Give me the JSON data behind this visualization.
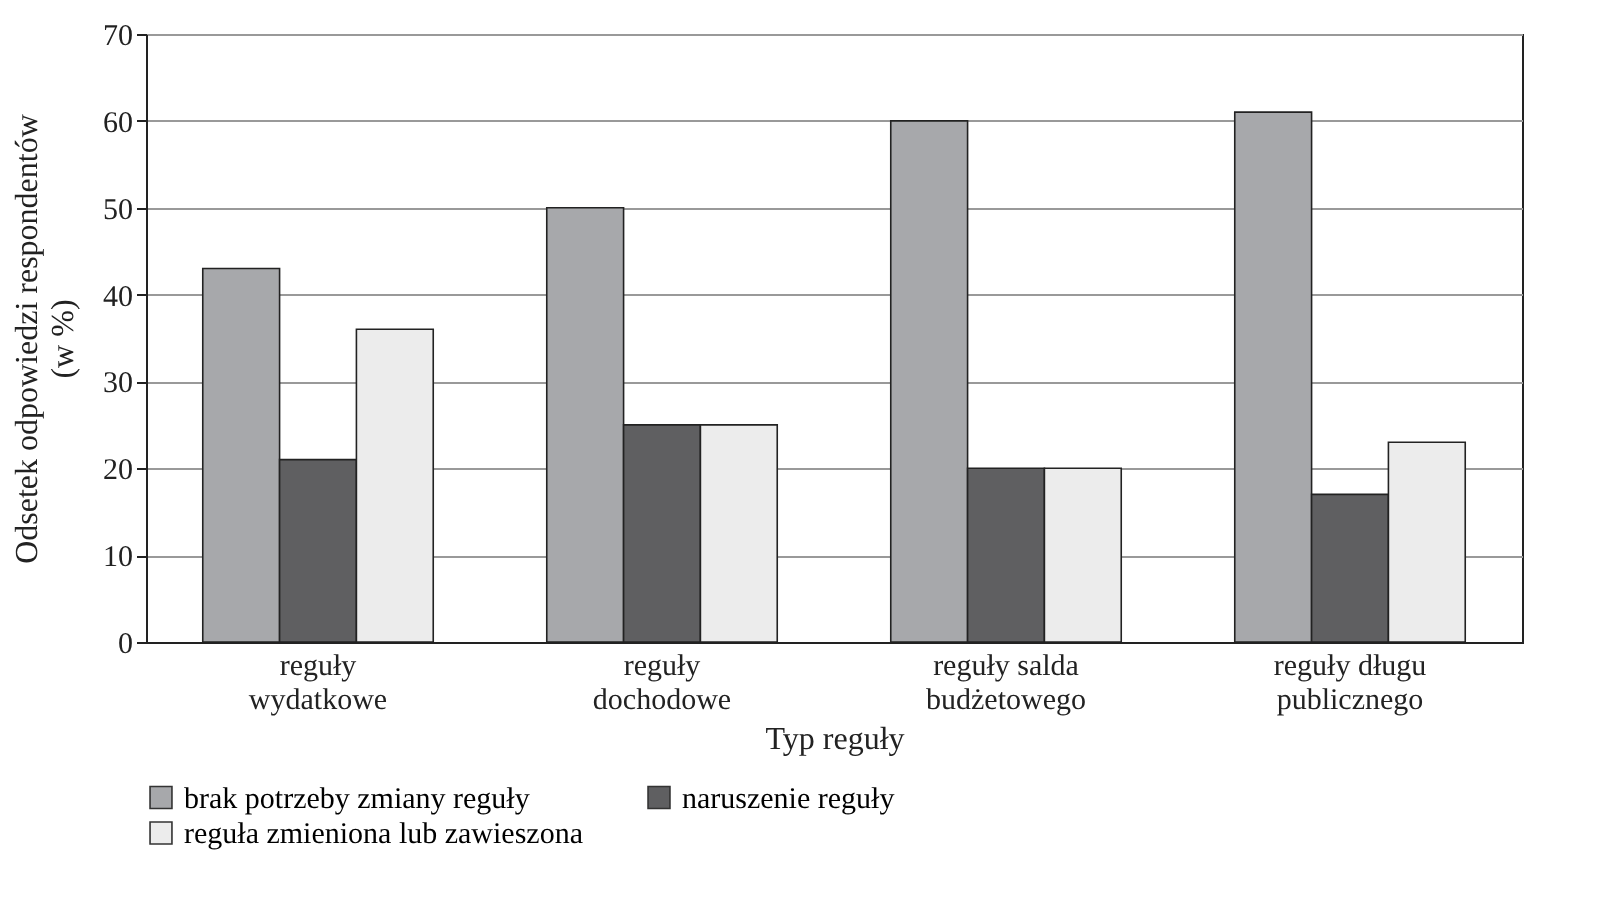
{
  "chart_data": {
    "type": "bar",
    "xlabel": "Typ reguły",
    "ylabel": "Odsetek  odpowiedzi respondentów (w %)",
    "categories": [
      "reguły wydatkowe",
      "reguły dochodowe",
      "reguły salda budżetowego",
      "reguły długu publicznego"
    ],
    "series": [
      {
        "name": "brak potrzeby zmiany reguły",
        "color": "#a7a8ab",
        "values": [
          43,
          50,
          60,
          61
        ]
      },
      {
        "name": "naruszenie reguły",
        "color": "#5f5f61",
        "values": [
          21,
          25,
          20,
          17
        ]
      },
      {
        "name": "reguła zmieniona lub zawieszona",
        "color": "#ececec",
        "values": [
          36,
          25,
          20,
          23
        ]
      }
    ],
    "ylim": [
      0,
      70
    ],
    "yticks": [
      0,
      10,
      20,
      30,
      40,
      50,
      60,
      70
    ],
    "grid": "y",
    "legend": "bottom left"
  }
}
